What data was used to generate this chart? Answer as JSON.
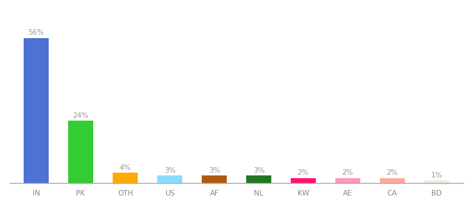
{
  "categories": [
    "IN",
    "PK",
    "OTH",
    "US",
    "AF",
    "NL",
    "KW",
    "AE",
    "CA",
    "BD"
  ],
  "values": [
    56,
    24,
    4,
    3,
    3,
    3,
    2,
    2,
    2,
    1
  ],
  "bar_colors": [
    "#4d72d4",
    "#33cc33",
    "#ffaa00",
    "#88ddff",
    "#b05a10",
    "#227722",
    "#ff1177",
    "#ff99bb",
    "#ffaa99",
    "#eeeedd"
  ],
  "title_fontsize": 9,
  "label_fontsize": 7.5,
  "tick_fontsize": 7.5,
  "ylim": [
    0,
    65
  ],
  "background_color": "#ffffff"
}
